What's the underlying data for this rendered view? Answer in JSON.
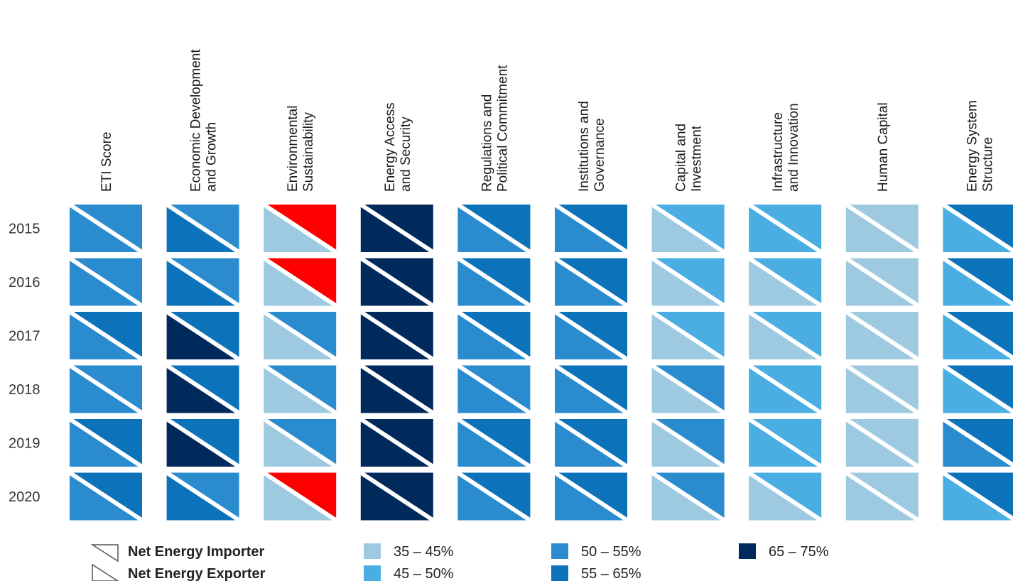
{
  "chart_data": {
    "type": "heatmap",
    "columns": [
      [
        "ETI Score"
      ],
      [
        "Economic Development",
        "and Growth"
      ],
      [
        "Environmental",
        "Sustainability"
      ],
      [
        "Energy Access",
        "and Security"
      ],
      [
        "Regulations and",
        "Political Commitment"
      ],
      [
        "Institutions and",
        "Governance"
      ],
      [
        "Capital and",
        "Investment"
      ],
      [
        "Infrastructure",
        "and Innovation"
      ],
      [
        "Human Capital"
      ],
      [
        "Energy System",
        "Structure"
      ]
    ],
    "years": [
      "2015",
      "2016",
      "2017",
      "2018",
      "2019",
      "2020"
    ],
    "colors": {
      "35-45": "#9ecae1",
      "45-50": "#4aaee3",
      "50-55": "#2a8ccf",
      "55-65": "#0c72ba",
      "65-75": "#012a5c",
      "red": "#ff0000"
    },
    "cells": [
      [
        [
          "50-55",
          "50-55"
        ],
        [
          "55-65",
          "50-55"
        ],
        [
          "35-45",
          "red"
        ],
        [
          "65-75",
          "65-75"
        ],
        [
          "50-55",
          "55-65"
        ],
        [
          "50-55",
          "55-65"
        ],
        [
          "35-45",
          "45-50"
        ],
        [
          "45-50",
          "45-50"
        ],
        [
          "35-45",
          "35-45"
        ],
        [
          "45-50",
          "55-65"
        ]
      ],
      [
        [
          "50-55",
          "50-55"
        ],
        [
          "55-65",
          "50-55"
        ],
        [
          "35-45",
          "red"
        ],
        [
          "65-75",
          "65-75"
        ],
        [
          "50-55",
          "55-65"
        ],
        [
          "50-55",
          "55-65"
        ],
        [
          "35-45",
          "45-50"
        ],
        [
          "35-45",
          "45-50"
        ],
        [
          "35-45",
          "35-45"
        ],
        [
          "45-50",
          "55-65"
        ]
      ],
      [
        [
          "50-55",
          "55-65"
        ],
        [
          "65-75",
          "55-65"
        ],
        [
          "35-45",
          "50-55"
        ],
        [
          "65-75",
          "65-75"
        ],
        [
          "50-55",
          "55-65"
        ],
        [
          "50-55",
          "55-65"
        ],
        [
          "35-45",
          "45-50"
        ],
        [
          "35-45",
          "45-50"
        ],
        [
          "35-45",
          "35-45"
        ],
        [
          "45-50",
          "55-65"
        ]
      ],
      [
        [
          "50-55",
          "50-55"
        ],
        [
          "65-75",
          "55-65"
        ],
        [
          "35-45",
          "50-55"
        ],
        [
          "65-75",
          "65-75"
        ],
        [
          "50-55",
          "50-55"
        ],
        [
          "50-55",
          "55-65"
        ],
        [
          "35-45",
          "50-55"
        ],
        [
          "45-50",
          "45-50"
        ],
        [
          "35-45",
          "35-45"
        ],
        [
          "45-50",
          "55-65"
        ]
      ],
      [
        [
          "50-55",
          "55-65"
        ],
        [
          "65-75",
          "55-65"
        ],
        [
          "35-45",
          "50-55"
        ],
        [
          "65-75",
          "65-75"
        ],
        [
          "50-55",
          "55-65"
        ],
        [
          "50-55",
          "55-65"
        ],
        [
          "35-45",
          "50-55"
        ],
        [
          "45-50",
          "45-50"
        ],
        [
          "35-45",
          "35-45"
        ],
        [
          "50-55",
          "55-65"
        ]
      ],
      [
        [
          "50-55",
          "55-65"
        ],
        [
          "55-65",
          "50-55"
        ],
        [
          "35-45",
          "red"
        ],
        [
          "65-75",
          "65-75"
        ],
        [
          "50-55",
          "55-65"
        ],
        [
          "50-55",
          "55-65"
        ],
        [
          "35-45",
          "50-55"
        ],
        [
          "35-45",
          "45-50"
        ],
        [
          "35-45",
          "35-45"
        ],
        [
          "45-50",
          "55-65"
        ]
      ]
    ],
    "legend": {
      "importer": "Net Energy Importer",
      "exporter": "Net Energy Exporter",
      "ranges": [
        {
          "key": "35-45",
          "label": "35 – 45%"
        },
        {
          "key": "45-50",
          "label": "45 – 50%"
        },
        {
          "key": "50-55",
          "label": "50 – 55%"
        },
        {
          "key": "55-65",
          "label": "55 – 65%"
        },
        {
          "key": "65-75",
          "label": "65 – 75%"
        }
      ]
    }
  }
}
